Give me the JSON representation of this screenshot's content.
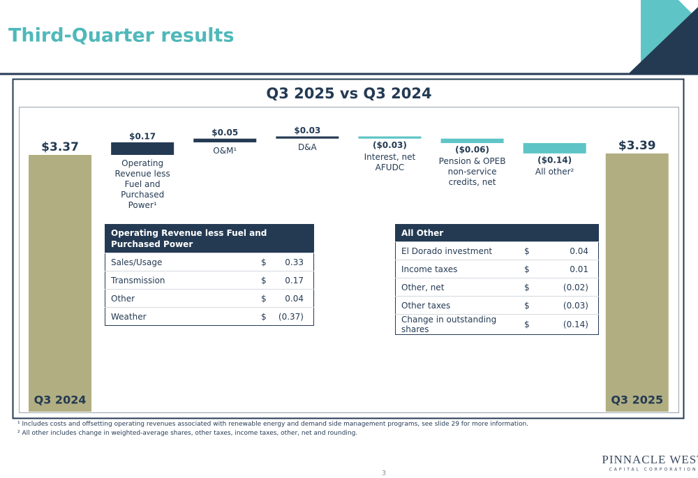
{
  "header": {
    "title": "Third-Quarter results"
  },
  "chart_data": {
    "type": "waterfall",
    "title": "Q3 2025 vs Q3 2024",
    "categories": [
      "Q3 2024",
      "Operating Revenue less Fuel and Purchased Power¹",
      "O&M¹",
      "D&A",
      "Interest, net AFUDC",
      "Pension & OPEB non-service credits, net",
      "All other²",
      "Q3 2025"
    ],
    "values": [
      3.37,
      0.17,
      0.05,
      0.03,
      -0.03,
      -0.06,
      -0.14,
      3.39
    ],
    "value_labels": [
      "$3.37",
      "$0.17",
      "$0.05",
      "$0.03",
      "($0.03)",
      "($0.06)",
      "($0.14)",
      "$3.39"
    ],
    "measure": [
      "absolute",
      "relative",
      "relative",
      "relative",
      "relative",
      "relative",
      "relative",
      "absolute"
    ],
    "colors": {
      "total": "#b1ae82",
      "increase": "#243a53",
      "decrease": "#5ec4c6"
    }
  },
  "tables": [
    {
      "title": "Operating Revenue less Fuel and Purchased Power",
      "rows": [
        [
          "Sales/Usage",
          "$",
          "0.33"
        ],
        [
          "Transmission",
          "$",
          "0.17"
        ],
        [
          "Other",
          "$",
          "0.04"
        ],
        [
          "Weather",
          "$",
          "(0.37)"
        ]
      ]
    },
    {
      "title": "All Other",
      "rows": [
        [
          "El Dorado investment",
          "$",
          "0.04"
        ],
        [
          "Income taxes",
          "$",
          "0.01"
        ],
        [
          "Other, net",
          "$",
          "(0.02)"
        ],
        [
          "Other taxes",
          "$",
          "(0.03)"
        ],
        [
          "Change in outstanding shares",
          "$",
          "(0.14)"
        ]
      ]
    }
  ],
  "footnotes": [
    "¹ Includes costs and offsetting operating revenues associated with renewable energy and demand side management programs, see slide 29 for more information.",
    "² All other includes change in weighted-average shares, other taxes, income taxes, other, net and rounding."
  ],
  "page_number": "3",
  "logo": {
    "name": "PINNACLE WEST",
    "tagline": "CAPITAL CORPORATION"
  }
}
